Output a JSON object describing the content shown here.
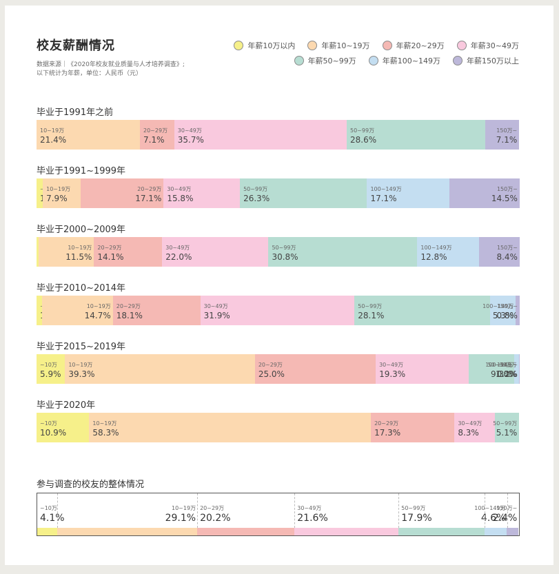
{
  "header": {
    "title": "校友薪酬情况",
    "source_line1": "数据来源｜《2020年校友就业质量与人才培养调查》;",
    "source_line2": "以下统计为年薪，单位：人民币（元）"
  },
  "colors": {
    "lt10": "#f6f08a",
    "10_19": "#fcd9b0",
    "20_29": "#f5b9b4",
    "30_49": "#f9c9de",
    "50_99": "#b7ddd2",
    "100_149": "#c4def1",
    "150plus": "#bdb8da"
  },
  "legend": {
    "row1": [
      {
        "label": "年薪10万以内",
        "color": "#f6f08a"
      },
      {
        "label": "年薪10~19万",
        "color": "#fcd9b0"
      },
      {
        "label": "年薪20~29万",
        "color": "#f5b9b4"
      },
      {
        "label": "年薪30~49万",
        "color": "#f9c9de"
      }
    ],
    "row2": [
      {
        "label": "年薪50~99万",
        "color": "#b7ddd2"
      },
      {
        "label": "年薪100~149万",
        "color": "#c4def1"
      },
      {
        "label": "年薪150万以上",
        "color": "#bdb8da"
      }
    ]
  },
  "groups": [
    {
      "title": "毕业于1991年之前",
      "segments": [
        {
          "label": "10~19万",
          "value": "21.4%",
          "pct": 21.4,
          "color": "#fcd9b0",
          "align": "left"
        },
        {
          "label": "20~29万",
          "value": "7.1%",
          "pct": 7.1,
          "color": "#f5b9b4",
          "align": "left"
        },
        {
          "label": "30~49万",
          "value": "35.7%",
          "pct": 35.7,
          "color": "#f9c9de",
          "align": "left"
        },
        {
          "label": "50~99万",
          "value": "28.6%",
          "pct": 28.6,
          "color": "#b7ddd2",
          "align": "left"
        },
        {
          "label": "150万~",
          "value": "7.1%",
          "pct": 7.1,
          "color": "#bdb8da",
          "align": "right"
        }
      ]
    },
    {
      "title": "毕业于1991~1999年",
      "segments": [
        {
          "label": "~10万",
          "value": "1.3%",
          "pct": 1.3,
          "color": "#f6f08a",
          "align": "left"
        },
        {
          "label": "10~19万",
          "value": "7.9%",
          "pct": 7.9,
          "color": "#fcd9b0",
          "align": "left"
        },
        {
          "label": "20~29万",
          "value": "17.1%",
          "pct": 17.1,
          "color": "#f5b9b4",
          "align": "right"
        },
        {
          "label": "30~49万",
          "value": "15.8%",
          "pct": 15.8,
          "color": "#f9c9de",
          "align": "left"
        },
        {
          "label": "50~99万",
          "value": "26.3%",
          "pct": 26.3,
          "color": "#b7ddd2",
          "align": "left"
        },
        {
          "label": "100~149万",
          "value": "17.1%",
          "pct": 17.1,
          "color": "#c4def1",
          "align": "left"
        },
        {
          "label": "150万~",
          "value": "14.5%",
          "pct": 14.5,
          "color": "#bdb8da",
          "align": "right"
        }
      ]
    },
    {
      "title": "毕业于2000~2009年",
      "segments": [
        {
          "label": "~10万",
          "value": "0.4%",
          "pct": 0.4,
          "color": "#f6f08a",
          "align": "left"
        },
        {
          "label": "10~19万",
          "value": "11.5%",
          "pct": 11.5,
          "color": "#fcd9b0",
          "align": "right"
        },
        {
          "label": "20~29万",
          "value": "14.1%",
          "pct": 14.1,
          "color": "#f5b9b4",
          "align": "left"
        },
        {
          "label": "30~49万",
          "value": "22.0%",
          "pct": 22.0,
          "color": "#f9c9de",
          "align": "left"
        },
        {
          "label": "50~99万",
          "value": "30.8%",
          "pct": 30.8,
          "color": "#b7ddd2",
          "align": "left"
        },
        {
          "label": "100~149万",
          "value": "12.8%",
          "pct": 12.8,
          "color": "#c4def1",
          "align": "left"
        },
        {
          "label": "150万~",
          "value": "8.4%",
          "pct": 8.4,
          "color": "#bdb8da",
          "align": "right"
        }
      ]
    },
    {
      "title": "毕业于2010~2014年",
      "segments": [
        {
          "label": "~10万",
          "value": "1.1%",
          "pct": 1.1,
          "color": "#f6f08a",
          "align": "left"
        },
        {
          "label": "10~19万",
          "value": "14.7%",
          "pct": 14.7,
          "color": "#fcd9b0",
          "align": "right"
        },
        {
          "label": "20~29万",
          "value": "18.1%",
          "pct": 18.1,
          "color": "#f5b9b4",
          "align": "left"
        },
        {
          "label": "30~49万",
          "value": "31.9%",
          "pct": 31.9,
          "color": "#f9c9de",
          "align": "left"
        },
        {
          "label": "50~99万",
          "value": "28.1%",
          "pct": 28.1,
          "color": "#b7ddd2",
          "align": "left"
        },
        {
          "label": "100~149万",
          "value": "5.3%",
          "pct": 5.3,
          "color": "#c4def1",
          "align": "right"
        },
        {
          "label": "150万~",
          "value": "0.8%",
          "pct": 0.8,
          "color": "#bdb8da",
          "align": "right"
        }
      ]
    },
    {
      "title": "毕业于2015~2019年",
      "segments": [
        {
          "label": "~10万",
          "value": "5.9%",
          "pct": 5.9,
          "color": "#f6f08a",
          "align": "left"
        },
        {
          "label": "10~19万",
          "value": "39.3%",
          "pct": 39.3,
          "color": "#fcd9b0",
          "align": "left"
        },
        {
          "label": "20~29万",
          "value": "25.0%",
          "pct": 25.0,
          "color": "#f5b9b4",
          "align": "left"
        },
        {
          "label": "30~49万",
          "value": "19.3%",
          "pct": 19.3,
          "color": "#f9c9de",
          "align": "left"
        },
        {
          "label": "50~99万",
          "value": "9.3%",
          "pct": 9.3,
          "color": "#b7ddd2",
          "align": "right"
        },
        {
          "label": "100~149万",
          "value": "1.0%",
          "pct": 1.0,
          "color": "#c4def1",
          "align": "right"
        },
        {
          "label": "150万~",
          "value": "0.2%",
          "pct": 0.2,
          "color": "#bdb8da",
          "align": "right"
        }
      ]
    },
    {
      "title": "毕业于2020年",
      "segments": [
        {
          "label": "~10万",
          "value": "10.9%",
          "pct": 10.9,
          "color": "#f6f08a",
          "align": "left"
        },
        {
          "label": "10~19万",
          "value": "58.3%",
          "pct": 58.3,
          "color": "#fcd9b0",
          "align": "left"
        },
        {
          "label": "20~29万",
          "value": "17.3%",
          "pct": 17.3,
          "color": "#f5b9b4",
          "align": "left"
        },
        {
          "label": "30~49万",
          "value": "8.3%",
          "pct": 8.3,
          "color": "#f9c9de",
          "align": "left"
        },
        {
          "label": "50~99万",
          "value": "5.1%",
          "pct": 5.1,
          "color": "#b7ddd2",
          "align": "right"
        }
      ]
    }
  ],
  "overall": {
    "title": "参与调查的校友的整体情况",
    "segments": [
      {
        "label": "~10万",
        "value": "4.1%",
        "pct": 4.1,
        "color": "#f6f08a",
        "align": "left"
      },
      {
        "label": "10~19万",
        "value": "29.1%",
        "pct": 29.1,
        "color": "#fcd9b0",
        "align": "right"
      },
      {
        "label": "20~29万",
        "value": "20.2%",
        "pct": 20.2,
        "color": "#f5b9b4",
        "align": "left"
      },
      {
        "label": "30~49万",
        "value": "21.6%",
        "pct": 21.6,
        "color": "#f9c9de",
        "align": "left"
      },
      {
        "label": "50~99万",
        "value": "17.9%",
        "pct": 17.9,
        "color": "#b7ddd2",
        "align": "left"
      },
      {
        "label": "100~149万",
        "value": "4.6%",
        "pct": 4.6,
        "color": "#c4def1",
        "align": "right"
      },
      {
        "label": "150万~",
        "value": "2.4%",
        "pct": 2.4,
        "color": "#bdb8da",
        "align": "right"
      }
    ]
  },
  "chart_data": {
    "type": "bar",
    "orientation": "horizontal-stacked-100",
    "title": "校友薪酬情况",
    "subtitle": "数据来源｜《2020年校友就业质量与人才培养调查》; 以下统计为年薪，单位：人民币（元）",
    "categories": [
      "毕业于1991年之前",
      "毕业于1991~1999年",
      "毕业于2000~2009年",
      "毕业于2010~2014年",
      "毕业于2015~2019年",
      "毕业于2020年",
      "参与调查的校友的整体情况"
    ],
    "series": [
      {
        "name": "年薪10万以内",
        "values": [
          0,
          1.3,
          0.4,
          1.1,
          5.9,
          10.9,
          4.1
        ]
      },
      {
        "name": "年薪10~19万",
        "values": [
          21.4,
          7.9,
          11.5,
          14.7,
          39.3,
          58.3,
          29.1
        ]
      },
      {
        "name": "年薪20~29万",
        "values": [
          7.1,
          17.1,
          14.1,
          18.1,
          25.0,
          17.3,
          20.2
        ]
      },
      {
        "name": "年薪30~49万",
        "values": [
          35.7,
          15.8,
          22.0,
          31.9,
          19.3,
          8.3,
          21.6
        ]
      },
      {
        "name": "年薪50~99万",
        "values": [
          28.6,
          26.3,
          30.8,
          28.1,
          9.3,
          5.1,
          17.9
        ]
      },
      {
        "name": "年薪100~149万",
        "values": [
          0,
          17.1,
          12.8,
          5.3,
          1.0,
          0,
          4.6
        ]
      },
      {
        "name": "年薪150万以上",
        "values": [
          7.1,
          14.5,
          8.4,
          0.8,
          0.2,
          0,
          2.4
        ]
      }
    ],
    "xlabel": "",
    "ylabel": "",
    "unit": "%",
    "legend_position": "top-right",
    "grid": false
  }
}
